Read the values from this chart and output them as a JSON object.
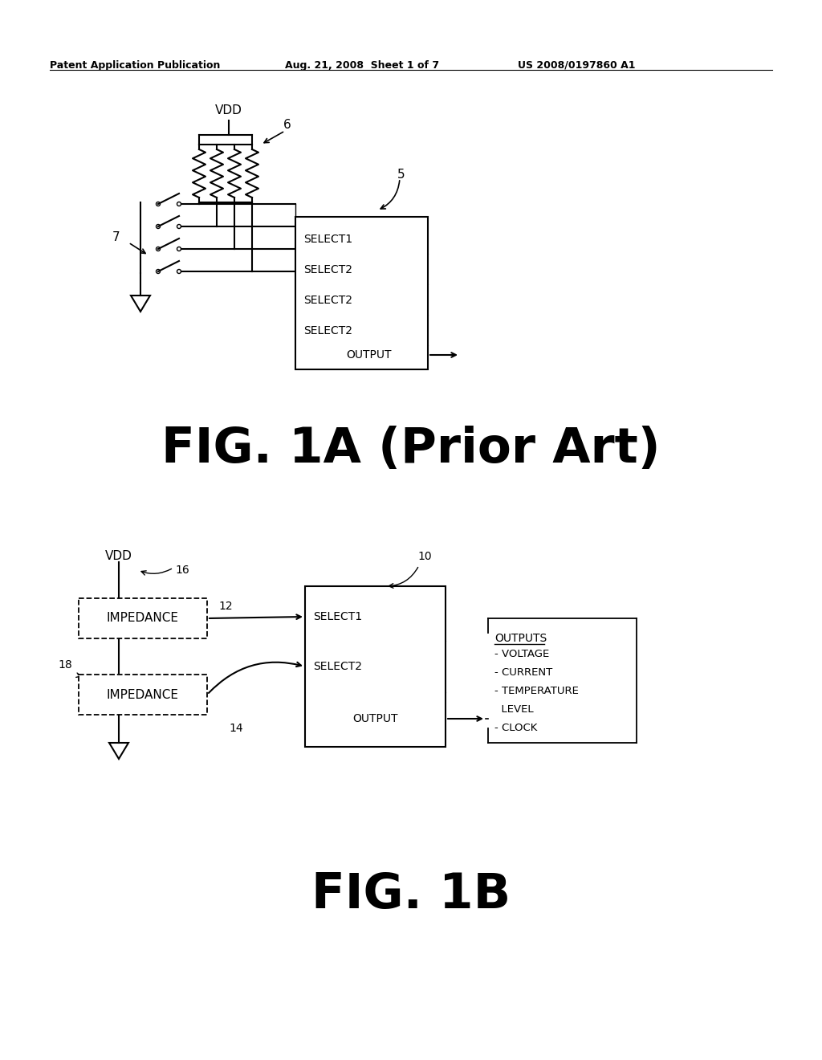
{
  "bg_color": "#ffffff",
  "text_color": "#000000",
  "header_left": "Patent Application Publication",
  "header_mid": "Aug. 21, 2008  Sheet 1 of 7",
  "header_right": "US 2008/0197860 A1",
  "fig1a_label": "FIG. 1A (Prior Art)",
  "fig1b_label": "FIG. 1B"
}
